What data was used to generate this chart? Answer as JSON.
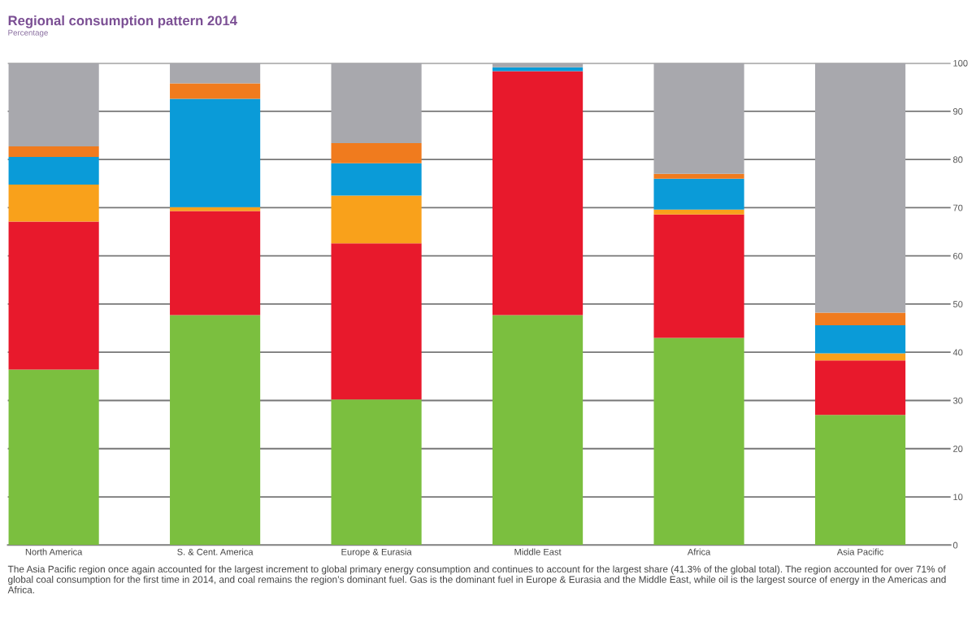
{
  "chart_data": {
    "type": "bar",
    "stacked": true,
    "title": "Regional consumption pattern 2014",
    "subtitle": "Percentage",
    "categories": [
      "North America",
      "S. & Cent. America",
      "Europe & Eurasia",
      "Middle East",
      "Africa",
      "Asia Pacific"
    ],
    "series": [
      {
        "color": "#7bbf3f",
        "values": [
          36.4,
          47.7,
          30.2,
          47.7,
          43.0,
          27.0
        ]
      },
      {
        "color": "#e8192c",
        "values": [
          30.7,
          21.6,
          32.4,
          50.6,
          25.6,
          11.3
        ]
      },
      {
        "color": "#f9a11b",
        "values": [
          7.7,
          0.8,
          9.9,
          0,
          1.0,
          1.5
        ]
      },
      {
        "color": "#0a9bd8",
        "values": [
          5.7,
          22.5,
          6.7,
          0.8,
          6.4,
          5.8
        ]
      },
      {
        "color": "#f07b1e",
        "values": [
          2.2,
          3.2,
          4.2,
          0,
          1.0,
          2.6
        ]
      },
      {
        "color": "#a8a8ad",
        "values": [
          17.3,
          4.2,
          16.6,
          0.9,
          23.0,
          51.8
        ]
      }
    ],
    "ylim": [
      0,
      100
    ],
    "yticks": [
      0,
      10,
      20,
      30,
      40,
      50,
      60,
      70,
      80,
      90,
      100
    ],
    "grid": "y",
    "legend": false,
    "annotations": [
      "The Asia Pacific region once again accounted for the largest increment to global primary energy consumption and continues to account for the largest share (41.3% of the global total). The region accounted for over 71% of global coal consumption for the first time in 2014, and coal remains the region’s dominant fuel. Gas is the dominant fuel in Europe & Eurasia and the Middle East, while oil is the largest source of energy in the Americas and Africa."
    ]
  }
}
